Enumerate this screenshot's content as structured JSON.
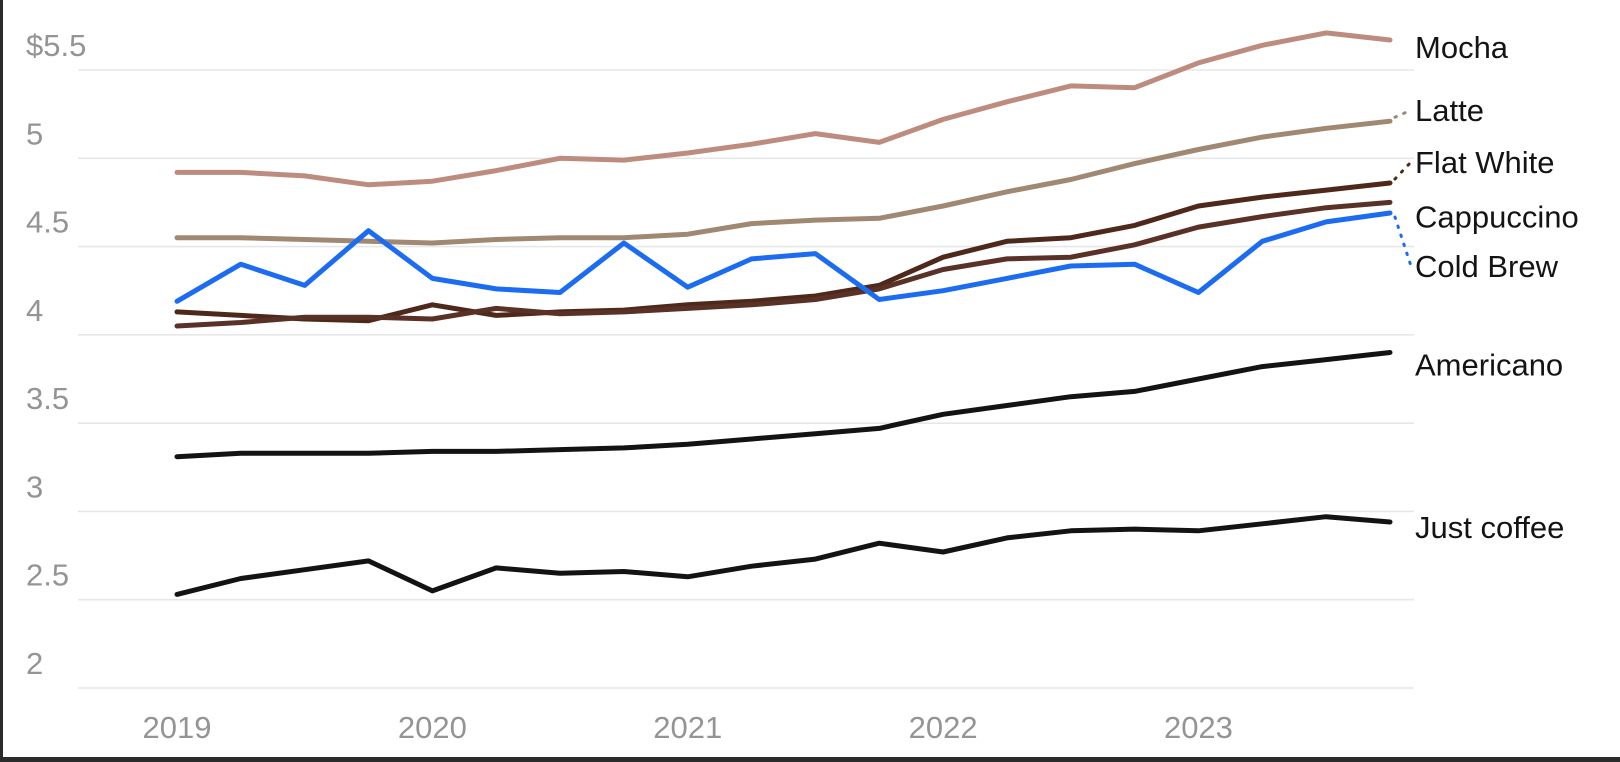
{
  "chart_data": {
    "type": "line",
    "title": "",
    "grid": true,
    "legend_position": "right-end-labels",
    "categories": [
      "2019 Q1",
      "2019 Q2",
      "2019 Q3",
      "2019 Q4",
      "2020 Q1",
      "2020 Q2",
      "2020 Q3",
      "2020 Q4",
      "2021 Q1",
      "2021 Q2",
      "2021 Q3",
      "2021 Q4",
      "2022 Q1",
      "2022 Q2",
      "2022 Q3",
      "2022 Q4",
      "2023 Q1",
      "2023 Q2",
      "2023 Q3",
      "2023 Q4"
    ],
    "x_axis": {
      "ticks": [
        {
          "label": "2019",
          "index": 0
        },
        {
          "label": "2020",
          "index": 4
        },
        {
          "label": "2021",
          "index": 8
        },
        {
          "label": "2022",
          "index": 12
        },
        {
          "label": "2023",
          "index": 16
        }
      ]
    },
    "y_axis": {
      "unit": "$",
      "range": [
        2.0,
        5.5
      ],
      "ticks": [
        {
          "label": "$5.5",
          "value": 5.5
        },
        {
          "label": "5",
          "value": 5.0
        },
        {
          "label": "4.5",
          "value": 4.5
        },
        {
          "label": "4",
          "value": 4.0
        },
        {
          "label": "3.5",
          "value": 3.5
        },
        {
          "label": "3",
          "value": 3.0
        },
        {
          "label": "2.5",
          "value": 2.5
        },
        {
          "label": "2",
          "value": 2.0
        }
      ]
    },
    "series": [
      {
        "name": "Mocha",
        "color": "#bd8c7f",
        "leader": false,
        "label_dy": 7,
        "values": [
          4.92,
          4.92,
          4.9,
          4.85,
          4.87,
          4.93,
          5.0,
          4.99,
          5.03,
          5.08,
          5.14,
          5.09,
          5.22,
          5.32,
          5.41,
          5.4,
          5.54,
          5.64,
          5.71,
          5.67
        ]
      },
      {
        "name": "Latte",
        "color": "#a08873",
        "leader": true,
        "label_dy": -11,
        "values": [
          4.55,
          4.55,
          4.54,
          4.53,
          4.52,
          4.54,
          4.55,
          4.55,
          4.57,
          4.63,
          4.65,
          4.66,
          4.73,
          4.81,
          4.88,
          4.97,
          5.05,
          5.12,
          5.17,
          5.21
        ]
      },
      {
        "name": "Flat White",
        "color": "#4f281c",
        "leader": true,
        "label_dy": -21,
        "values": [
          4.13,
          4.11,
          4.09,
          4.08,
          4.17,
          4.11,
          4.13,
          4.14,
          4.17,
          4.19,
          4.22,
          4.28,
          4.44,
          4.53,
          4.55,
          4.62,
          4.73,
          4.78,
          4.82,
          4.86
        ]
      },
      {
        "name": "Cappuccino",
        "color": "#5a3126",
        "leader": false,
        "label_dy": 14,
        "values": [
          4.05,
          4.07,
          4.1,
          4.1,
          4.09,
          4.15,
          4.12,
          4.13,
          4.15,
          4.17,
          4.2,
          4.26,
          4.37,
          4.43,
          4.44,
          4.51,
          4.61,
          4.67,
          4.72,
          4.75
        ]
      },
      {
        "name": "Cold Brew",
        "color": "#1c6cf2",
        "leader": true,
        "label_dy": 53,
        "values": [
          4.19,
          4.4,
          4.28,
          4.59,
          4.32,
          4.26,
          4.24,
          4.52,
          4.27,
          4.43,
          4.46,
          4.2,
          4.25,
          4.32,
          4.39,
          4.4,
          4.24,
          4.53,
          4.64,
          4.69
        ]
      },
      {
        "name": "Americano",
        "color": "#131313",
        "leader": false,
        "label_dy": 12,
        "values": [
          3.31,
          3.33,
          3.33,
          3.33,
          3.34,
          3.34,
          3.35,
          3.36,
          3.38,
          3.41,
          3.44,
          3.47,
          3.55,
          3.6,
          3.65,
          3.68,
          3.75,
          3.82,
          3.86,
          3.9
        ]
      },
      {
        "name": "Just coffee",
        "color": "#131313",
        "leader": false,
        "label_dy": 5,
        "values": [
          2.53,
          2.62,
          2.67,
          2.72,
          2.55,
          2.68,
          2.65,
          2.66,
          2.63,
          2.69,
          2.73,
          2.82,
          2.77,
          2.85,
          2.89,
          2.9,
          2.89,
          2.93,
          2.97,
          2.94
        ]
      }
    ],
    "style": {
      "grid_color": "#e7e7e7",
      "axis_text_color": "#949494",
      "series_label_color": "#141414",
      "line_width": 5
    }
  }
}
